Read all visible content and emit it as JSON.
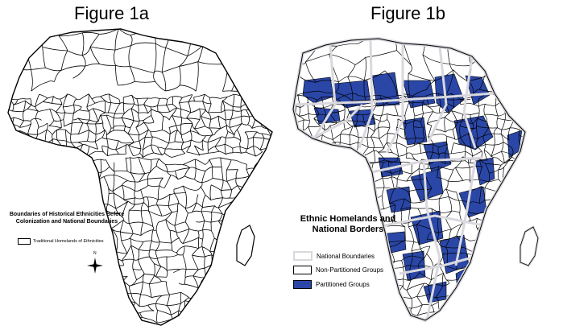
{
  "figure_a": {
    "title": "Figure 1a",
    "legend_title": "Boundaries of Historical Ethnicities Before Colonization and National Boundaries",
    "legend_item": "Traditional Homelands of Ethnicities",
    "compass_label": "N"
  },
  "figure_b": {
    "title": "Figure 1b",
    "legend_title": "Ethnic Homelands and National Borders",
    "legend_items": [
      {
        "label": "National Boundaries",
        "color": "#ffffff",
        "border": "#d8d8de"
      },
      {
        "label": "Non-Partitioned Groups",
        "color": "#ffffff",
        "border": "#000000"
      },
      {
        "label": "Partitioned Groups",
        "color": "#2a46a6",
        "border": "#000000"
      }
    ]
  },
  "colors": {
    "outline": "#000000",
    "partitioned": "#2a46a6",
    "national": "#d8d8de",
    "background": "#ffffff"
  }
}
